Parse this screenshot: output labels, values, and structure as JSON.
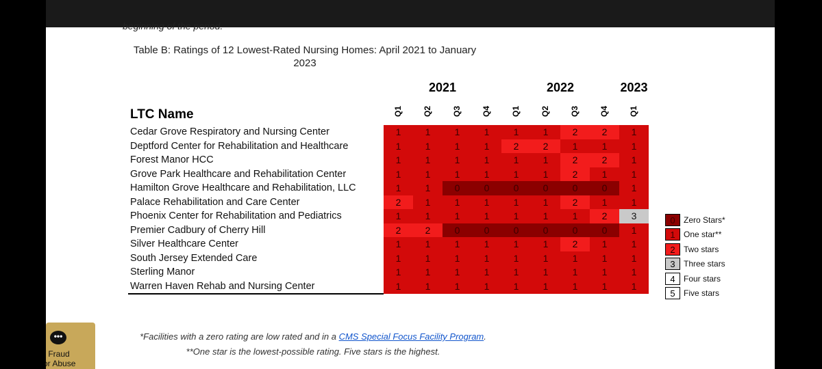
{
  "cut_text": "beginning of the period.",
  "title": "Table B: Ratings of 12 Lowest-Rated Nursing Homes: April 2021 to January 2023",
  "table": {
    "name_header": "LTC Name",
    "years": [
      {
        "label": "2021",
        "span": 4
      },
      {
        "label": "2022",
        "span": 4
      },
      {
        "label": "2023",
        "span": 1
      }
    ],
    "quarters": [
      "Q1",
      "Q2",
      "Q3",
      "Q4",
      "Q1",
      "Q2",
      "Q3",
      "Q4",
      "Q1"
    ],
    "rows": [
      {
        "name": "Cedar Grove Respiratory and Nursing Center",
        "ratings": [
          1,
          1,
          1,
          1,
          1,
          1,
          2,
          2,
          1
        ]
      },
      {
        "name": "Deptford Center for Rehabilitation and Healthcare",
        "ratings": [
          1,
          1,
          1,
          1,
          2,
          2,
          1,
          1,
          1
        ]
      },
      {
        "name": "Forest Manor HCC",
        "ratings": [
          1,
          1,
          1,
          1,
          1,
          1,
          2,
          2,
          1
        ]
      },
      {
        "name": "Grove Park Healthcare and Rehabilitation Center",
        "ratings": [
          1,
          1,
          1,
          1,
          1,
          1,
          2,
          1,
          1
        ]
      },
      {
        "name": "Hamilton Grove Healthcare and Rehabilitation, LLC",
        "ratings": [
          1,
          1,
          0,
          0,
          0,
          0,
          0,
          0,
          1
        ]
      },
      {
        "name": "Palace Rehabilitation and Care Center",
        "ratings": [
          2,
          1,
          1,
          1,
          1,
          1,
          2,
          1,
          1
        ]
      },
      {
        "name": "Phoenix Center for Rehabilitation and Pediatrics",
        "ratings": [
          1,
          1,
          1,
          1,
          1,
          1,
          1,
          2,
          3
        ]
      },
      {
        "name": "Premier Cadbury of Cherry Hill",
        "ratings": [
          2,
          2,
          0,
          0,
          0,
          0,
          0,
          0,
          1
        ]
      },
      {
        "name": "Silver Healthcare Center",
        "ratings": [
          1,
          1,
          1,
          1,
          1,
          1,
          2,
          1,
          1
        ]
      },
      {
        "name": "South Jersey Extended Care",
        "ratings": [
          1,
          1,
          1,
          1,
          1,
          1,
          1,
          1,
          1
        ]
      },
      {
        "name": "Sterling Manor",
        "ratings": [
          1,
          1,
          1,
          1,
          1,
          1,
          1,
          1,
          1
        ]
      },
      {
        "name": "Warren Haven Rehab and Nursing Center",
        "ratings": [
          1,
          1,
          1,
          1,
          1,
          1,
          1,
          1,
          1
        ]
      }
    ]
  },
  "legend": [
    {
      "value": "0",
      "label": "Zero Stars*"
    },
    {
      "value": "1",
      "label": "One star**"
    },
    {
      "value": "2",
      "label": "Two stars"
    },
    {
      "value": "3",
      "label": "Three stars"
    },
    {
      "value": "4",
      "label": "Four stars"
    },
    {
      "value": "5",
      "label": "Five stars"
    }
  ],
  "colors": {
    "zero": "#8b0000",
    "one": "#d30a0a",
    "two": "#f21c1c",
    "three": "#c9c9c9"
  },
  "footnotes": {
    "line1_prefix": "*Facilities with a zero rating are low rated and in a ",
    "line1_link": "CMS Special Focus Facility Program",
    "line1_suffix": ".",
    "line2": "**One star is the lowest-possible rating. Five stars is the highest."
  },
  "fraud_button": {
    "icon": "chat-bubble-icon",
    "line1": "ort Fraud",
    "line2": "e or Abuse"
  }
}
